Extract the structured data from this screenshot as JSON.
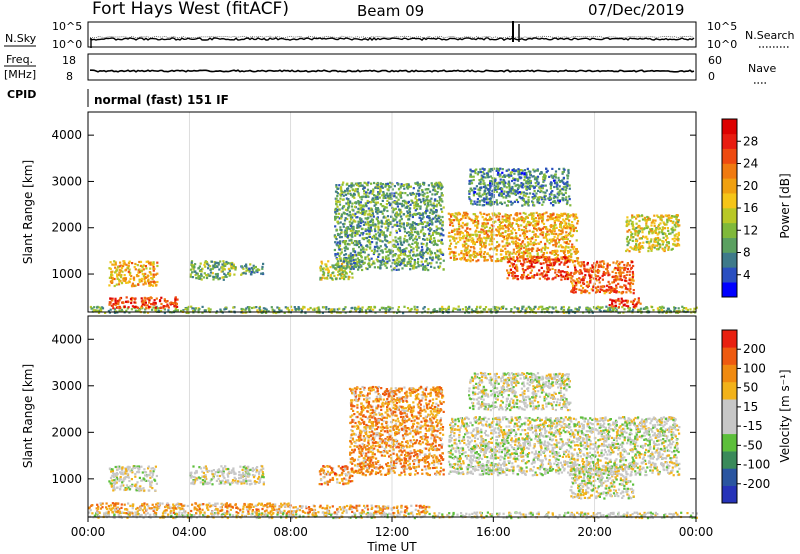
{
  "header": {
    "radar": "Fort Hays West (fitACF)",
    "beam": "Beam 09",
    "date": "07/Dec/2019"
  },
  "strip": {
    "nsky_label": "N.Sky",
    "nsky_ticks": [
      "10^5",
      "10^0"
    ],
    "nsearch_label": "N.Search",
    "nsearch_ticks": [
      "10^5",
      "10^0"
    ],
    "freq_label_1": "Freq.",
    "freq_label_2": "[MHz]",
    "freq_ticks": [
      "18",
      "8"
    ],
    "nave_label": "Nave",
    "nave_ticks": [
      "60",
      "0"
    ],
    "cpid_label": "CPID",
    "mode": "normal (fast) 151 IF"
  },
  "colors": {
    "power": [
      "#0000ff",
      "#2a4fc0",
      "#3e7a8a",
      "#5aa060",
      "#7fb93a",
      "#b8c826",
      "#f5c518",
      "#f0a010",
      "#f07a10",
      "#ee4a10",
      "#e81c10",
      "#dd0000"
    ],
    "velocity": [
      "#2633b8",
      "#2a55a0",
      "#3a8a5a",
      "#5cbf3a",
      "#c7c7c7",
      "#c7c7c7",
      "#f2b21a",
      "#f08a10",
      "#ee5a10",
      "#e82010"
    ],
    "noise_line": "#000000"
  },
  "power_colorbar": {
    "label": "Power [dB]",
    "ticks": [
      "28",
      "24",
      "20",
      "16",
      "12",
      "8",
      "4"
    ]
  },
  "velocity_colorbar": {
    "label": "Velocity [m s⁻¹]",
    "ticks": [
      "200",
      "100",
      "50",
      "15",
      "-15",
      "-50",
      "-100",
      "-200"
    ]
  },
  "xaxis": {
    "label": "Time UT",
    "ticks": [
      "00:00",
      "04:00",
      "08:00",
      "12:00",
      "16:00",
      "20:00",
      "00:00"
    ]
  },
  "chart_data": [
    {
      "type": "heatmap",
      "name": "power",
      "xlabel": "Time UT",
      "ylabel": "Slant Range [km]",
      "xlim": [
        0,
        24
      ],
      "ylim": [
        180,
        4500
      ],
      "yticks": [
        1000,
        2000,
        3000,
        4000
      ],
      "clim": [
        0,
        32
      ],
      "colorbar": "Power [dB]",
      "regions": [
        {
          "t0": 0.0,
          "t1": 24.0,
          "r0": 180,
          "r1": 320,
          "level": 0.35
        },
        {
          "t0": 0.8,
          "t1": 3.5,
          "r0": 280,
          "r1": 520,
          "level": 0.85
        },
        {
          "t0": 0.8,
          "t1": 2.7,
          "r0": 750,
          "r1": 1300,
          "level": 0.6
        },
        {
          "t0": 4.0,
          "t1": 5.8,
          "r0": 900,
          "r1": 1300,
          "level": 0.35
        },
        {
          "t0": 6.0,
          "t1": 6.9,
          "r0": 1000,
          "r1": 1250,
          "level": 0.3
        },
        {
          "t0": 9.1,
          "t1": 10.4,
          "r0": 900,
          "r1": 1300,
          "level": 0.45
        },
        {
          "t0": 9.7,
          "t1": 14.0,
          "r0": 1100,
          "r1": 3000,
          "level": 0.3
        },
        {
          "t0": 14.2,
          "t1": 19.3,
          "r0": 1300,
          "r1": 2350,
          "level": 0.6
        },
        {
          "t0": 16.5,
          "t1": 19.0,
          "r0": 900,
          "r1": 1400,
          "level": 0.8
        },
        {
          "t0": 19.0,
          "t1": 21.5,
          "r0": 600,
          "r1": 1300,
          "level": 0.75
        },
        {
          "t0": 21.2,
          "t1": 23.3,
          "r0": 1500,
          "r1": 2300,
          "level": 0.5
        },
        {
          "t0": 20.5,
          "t1": 21.8,
          "r0": 300,
          "r1": 500,
          "level": 0.85
        },
        {
          "t0": 15.0,
          "t1": 19.0,
          "r0": 2500,
          "r1": 3300,
          "level": 0.25
        }
      ]
    },
    {
      "type": "heatmap",
      "name": "velocity",
      "xlabel": "Time UT",
      "ylabel": "Slant Range [km]",
      "xlim": [
        0,
        24
      ],
      "ylim": [
        180,
        4500
      ],
      "yticks": [
        1000,
        2000,
        3000,
        4000
      ],
      "clim": [
        -250,
        250
      ],
      "colorbar": "Velocity [m s⁻¹]",
      "regions": [
        {
          "t0": 0.0,
          "t1": 24.0,
          "r0": 180,
          "r1": 300,
          "level": 0.5
        },
        {
          "t0": 0.0,
          "t1": 8.0,
          "r0": 280,
          "r1": 500,
          "level": 0.7
        },
        {
          "t0": 8.0,
          "t1": 13.5,
          "r0": 280,
          "r1": 450,
          "level": 0.68
        },
        {
          "t0": 0.8,
          "t1": 2.7,
          "r0": 750,
          "r1": 1300,
          "level": 0.5
        },
        {
          "t0": 4.0,
          "t1": 6.9,
          "r0": 900,
          "r1": 1300,
          "level": 0.5
        },
        {
          "t0": 9.1,
          "t1": 10.4,
          "r0": 900,
          "r1": 1300,
          "level": 0.75
        },
        {
          "t0": 10.3,
          "t1": 14.0,
          "r0": 1100,
          "r1": 3000,
          "level": 0.72
        },
        {
          "t0": 14.2,
          "t1": 23.3,
          "r0": 1100,
          "r1": 2350,
          "level": 0.5
        },
        {
          "t0": 19.0,
          "t1": 21.5,
          "r0": 600,
          "r1": 1300,
          "level": 0.5
        },
        {
          "t0": 15.0,
          "t1": 19.0,
          "r0": 2500,
          "r1": 3300,
          "level": 0.5
        }
      ]
    }
  ]
}
